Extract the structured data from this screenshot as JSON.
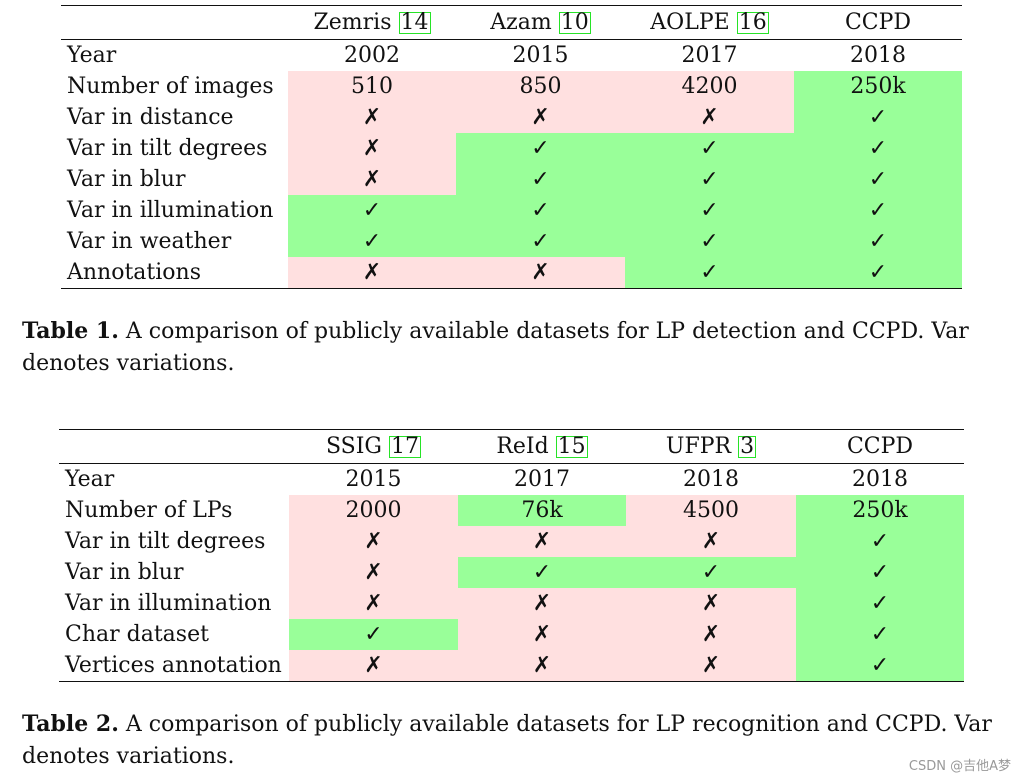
{
  "tables": [
    {
      "columns": [
        {
          "name": "Zemris",
          "ref": "14"
        },
        {
          "name": "Azam",
          "ref": "10"
        },
        {
          "name": "AOLPE",
          "ref": "16"
        },
        {
          "name": "CCPD",
          "ref": ""
        }
      ],
      "rows": [
        {
          "label": "Year",
          "cells": [
            {
              "v": "2002",
              "c": "w"
            },
            {
              "v": "2015",
              "c": "w"
            },
            {
              "v": "2017",
              "c": "w"
            },
            {
              "v": "2018",
              "c": "w"
            }
          ]
        },
        {
          "label": "Number of images",
          "cells": [
            {
              "v": "510",
              "c": "p"
            },
            {
              "v": "850",
              "c": "p"
            },
            {
              "v": "4200",
              "c": "p"
            },
            {
              "v": "250k",
              "c": "g"
            }
          ]
        },
        {
          "label": "Var in distance",
          "cells": [
            {
              "v": "✗",
              "c": "p"
            },
            {
              "v": "✗",
              "c": "p"
            },
            {
              "v": "✗",
              "c": "p"
            },
            {
              "v": "✓",
              "c": "g"
            }
          ]
        },
        {
          "label": "Var in tilt degrees",
          "cells": [
            {
              "v": "✗",
              "c": "p"
            },
            {
              "v": "✓",
              "c": "g"
            },
            {
              "v": "✓",
              "c": "g"
            },
            {
              "v": "✓",
              "c": "g"
            }
          ]
        },
        {
          "label": "Var in blur",
          "cells": [
            {
              "v": "✗",
              "c": "p"
            },
            {
              "v": "✓",
              "c": "g"
            },
            {
              "v": "✓",
              "c": "g"
            },
            {
              "v": "✓",
              "c": "g"
            }
          ]
        },
        {
          "label": "Var in illumination",
          "cells": [
            {
              "v": "✓",
              "c": "g"
            },
            {
              "v": "✓",
              "c": "g"
            },
            {
              "v": "✓",
              "c": "g"
            },
            {
              "v": "✓",
              "c": "g"
            }
          ]
        },
        {
          "label": "Var in weather",
          "cells": [
            {
              "v": "✓",
              "c": "g"
            },
            {
              "v": "✓",
              "c": "g"
            },
            {
              "v": "✓",
              "c": "g"
            },
            {
              "v": "✓",
              "c": "g"
            }
          ]
        },
        {
          "label": "Annotations",
          "cells": [
            {
              "v": "✗",
              "c": "p"
            },
            {
              "v": "✗",
              "c": "p"
            },
            {
              "v": "✓",
              "c": "g"
            },
            {
              "v": "✓",
              "c": "g"
            }
          ]
        }
      ],
      "caption_label": "Table 1.",
      "caption_text": " A comparison of publicly available datasets for LP detection and CCPD. Var denotes variations."
    },
    {
      "columns": [
        {
          "name": "SSIG",
          "ref": "17"
        },
        {
          "name": "ReId",
          "ref": "15"
        },
        {
          "name": "UFPR",
          "ref": "3"
        },
        {
          "name": "CCPD",
          "ref": ""
        }
      ],
      "rows": [
        {
          "label": "Year",
          "cells": [
            {
              "v": "2015",
              "c": "w"
            },
            {
              "v": "2017",
              "c": "w"
            },
            {
              "v": "2018",
              "c": "w"
            },
            {
              "v": "2018",
              "c": "w"
            }
          ]
        },
        {
          "label": "Number of LPs",
          "cells": [
            {
              "v": "2000",
              "c": "p"
            },
            {
              "v": "76k",
              "c": "g"
            },
            {
              "v": "4500",
              "c": "p"
            },
            {
              "v": "250k",
              "c": "g"
            }
          ]
        },
        {
          "label": "Var in tilt degrees",
          "cells": [
            {
              "v": "✗",
              "c": "p"
            },
            {
              "v": "✗",
              "c": "p"
            },
            {
              "v": "✗",
              "c": "p"
            },
            {
              "v": "✓",
              "c": "g"
            }
          ]
        },
        {
          "label": "Var in blur",
          "cells": [
            {
              "v": "✗",
              "c": "p"
            },
            {
              "v": "✓",
              "c": "g"
            },
            {
              "v": "✓",
              "c": "g"
            },
            {
              "v": "✓",
              "c": "g"
            }
          ]
        },
        {
          "label": "Var in illumination",
          "cells": [
            {
              "v": "✗",
              "c": "p"
            },
            {
              "v": "✗",
              "c": "p"
            },
            {
              "v": "✗",
              "c": "p"
            },
            {
              "v": "✓",
              "c": "g"
            }
          ]
        },
        {
          "label": "Char dataset",
          "cells": [
            {
              "v": "✓",
              "c": "g"
            },
            {
              "v": "✗",
              "c": "p"
            },
            {
              "v": "✗",
              "c": "p"
            },
            {
              "v": "✓",
              "c": "g"
            }
          ]
        },
        {
          "label": "Vertices annotation",
          "cells": [
            {
              "v": "✗",
              "c": "p"
            },
            {
              "v": "✗",
              "c": "p"
            },
            {
              "v": "✗",
              "c": "p"
            },
            {
              "v": "✓",
              "c": "g"
            }
          ]
        }
      ],
      "caption_label": "Table 2.",
      "caption_text": " A comparison of publicly available datasets for LP recognition and CCPD. Var denotes variations."
    }
  ],
  "watermark": "CSDN @吉他A梦",
  "colors": {
    "green": "#99ff99",
    "pink": "#ffe0e0",
    "ref_border": "#27e327"
  }
}
